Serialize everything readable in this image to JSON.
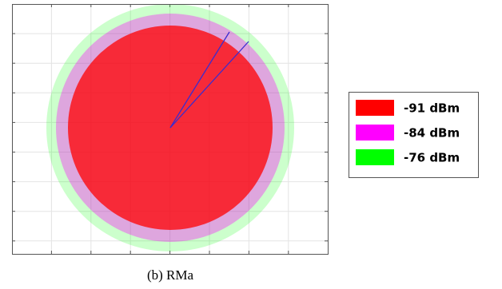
{
  "caption": "(b) RMa",
  "legend": [
    {
      "label": "-91 dBm",
      "color": "#ff0000"
    },
    {
      "label": "-84 dBm",
      "color": "#ff00ff"
    },
    {
      "label": "-76 dBm",
      "color": "#00ff00"
    }
  ]
}
